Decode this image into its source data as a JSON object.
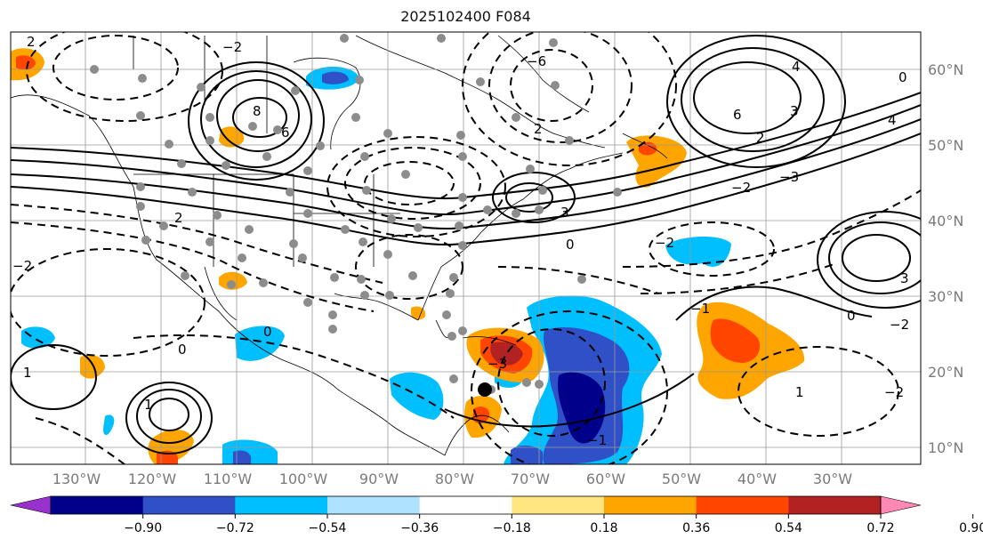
{
  "title": "2025102400 F084",
  "lon_ticks": [
    "130°W",
    "120°W",
    "110°W",
    "100°W",
    "90°W",
    "80°W",
    "70°W",
    "60°W",
    "50°W",
    "40°W",
    "30°W"
  ],
  "lat_ticks": [
    "60°N",
    "50°N",
    "40°N",
    "30°N",
    "20°N",
    "10°N"
  ],
  "colorbar": {
    "colors": [
      "#9932cc",
      "#00008b",
      "#3050c8",
      "#00bfff",
      "#aee2ff",
      "#ffffff",
      "#ffe680",
      "#ffa500",
      "#ff4500",
      "#b22222",
      "#ff88b4"
    ],
    "labels": [
      "−0.90",
      "−0.72",
      "−0.54",
      "−0.36",
      "−0.18",
      "0.18",
      "0.36",
      "0.54",
      "0.72",
      "0.90"
    ]
  },
  "contour_labels": [
    "2",
    "−2",
    "8",
    "6",
    "−6",
    "2",
    "6",
    "4",
    "3",
    "2",
    "−3",
    "−2",
    "0",
    "4",
    "3",
    "0",
    "−1",
    "−2",
    "0",
    "1",
    "1",
    "0",
    "2",
    "−2",
    "0",
    "−2",
    "−1",
    "1",
    "3",
    "−3",
    "−2"
  ],
  "colors": {
    "land": "#ffffff",
    "coast": "#000000",
    "grid": "#9a9a9a",
    "station": "#8c8c8c"
  }
}
